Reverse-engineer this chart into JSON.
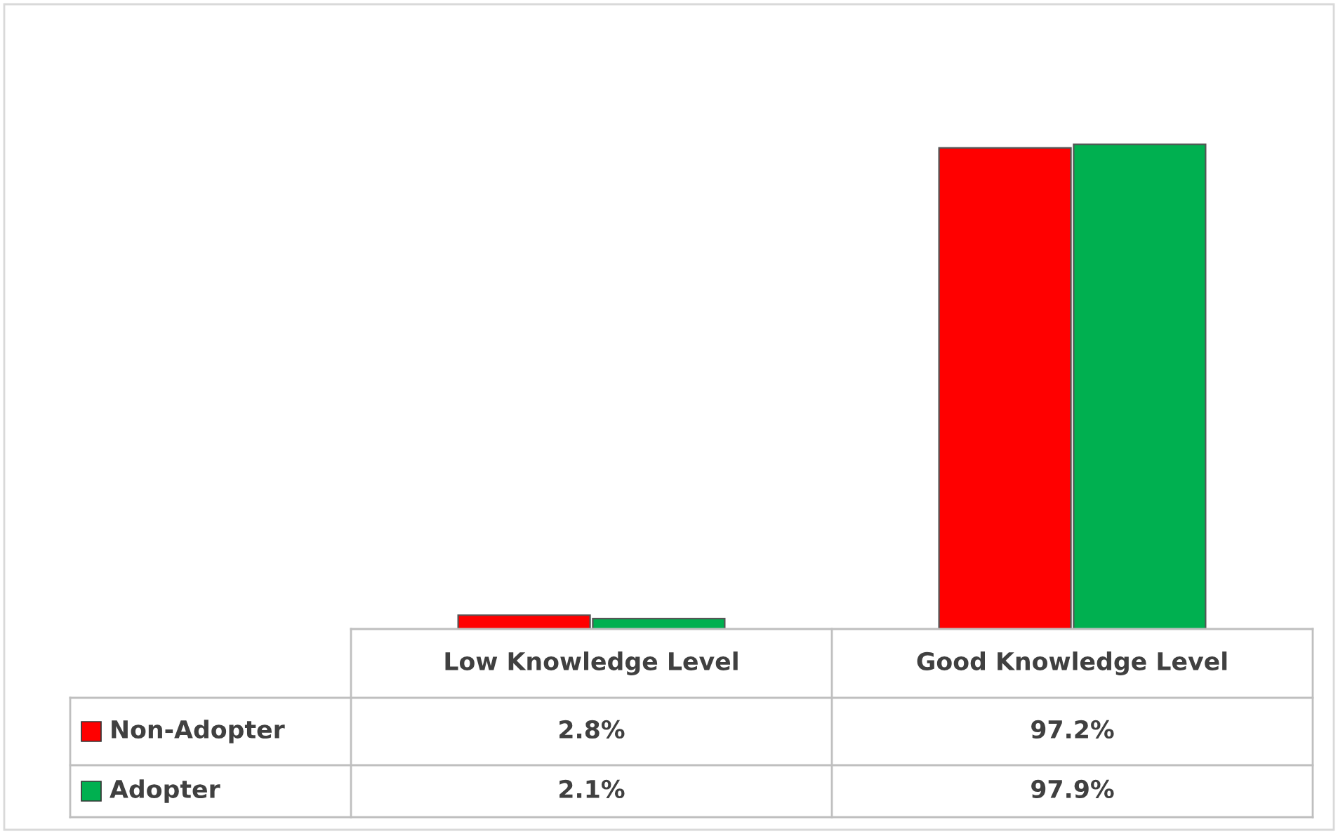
{
  "chart_data": {
    "type": "bar",
    "categories": [
      "Low Knowledge Level",
      "Good Knowledge Level"
    ],
    "series": [
      {
        "name": "Non-Adopter",
        "color": "#ff0000",
        "values": [
          2.8,
          97.2
        ],
        "value_labels": [
          "2.8%",
          "97.2%"
        ]
      },
      {
        "name": "Adopter",
        "color": "#00b050",
        "values": [
          2.1,
          97.9
        ],
        "value_labels": [
          "2.1%",
          "97.9%"
        ]
      }
    ],
    "legend": "bottom"
  }
}
